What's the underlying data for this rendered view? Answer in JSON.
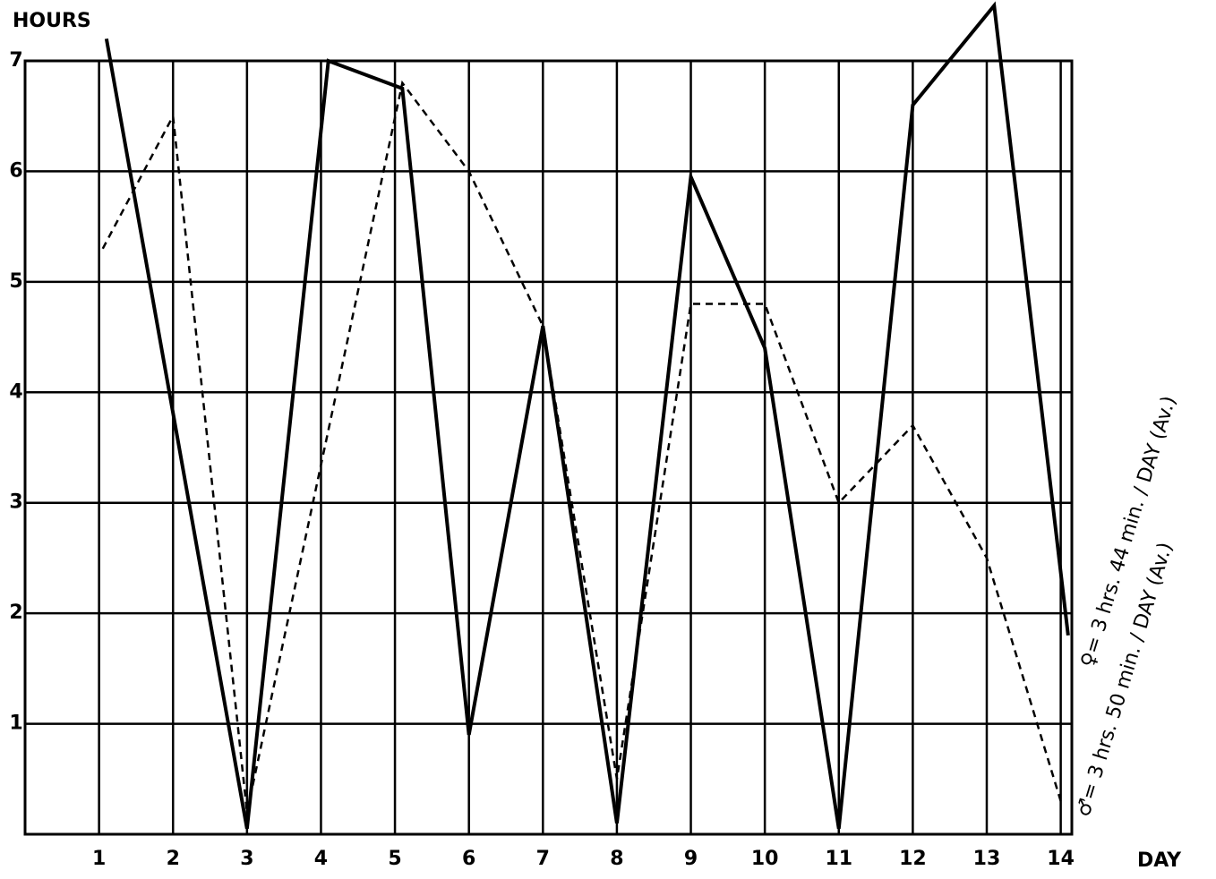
{
  "chart_data": {
    "type": "line",
    "y_label": "HOURS",
    "x_label": "DAY",
    "xlim": [
      0,
      14.15
    ],
    "xticks": [
      1,
      2,
      3,
      4,
      5,
      6,
      7,
      8,
      9,
      10,
      11,
      12,
      13,
      14
    ],
    "ylim": [
      0,
      7
    ],
    "yticks": [
      1,
      2,
      3,
      4,
      5,
      6,
      7
    ],
    "grid": true,
    "series": [
      {
        "color": "#000000",
        "dashed": false,
        "x": [
          1.1,
          3,
          4.1,
          5.1,
          6,
          7,
          8,
          9,
          10,
          11,
          12,
          13.1,
          14.1
        ],
        "values": [
          7.2,
          0.05,
          7,
          6.75,
          0.9,
          4.6,
          0.1,
          5.95,
          4.4,
          0.05,
          6.6,
          7.5,
          1.8
        ]
      },
      {
        "color": "#000000",
        "dashed": true,
        "x": [
          1.05,
          2,
          3,
          5.1,
          6,
          7,
          8,
          9,
          10,
          11,
          12,
          13,
          14
        ],
        "values": [
          5.3,
          6.5,
          0.2,
          6.8,
          6.0,
          4.6,
          0.5,
          4.8,
          4.8,
          3.0,
          3.7,
          2.5,
          0.3
        ]
      }
    ],
    "annotations": [
      "♀= 3 hrs. 44 min. / DAY (Av.)",
      "♂= 3 hrs. 50 min. / DAY (Av.)"
    ]
  }
}
